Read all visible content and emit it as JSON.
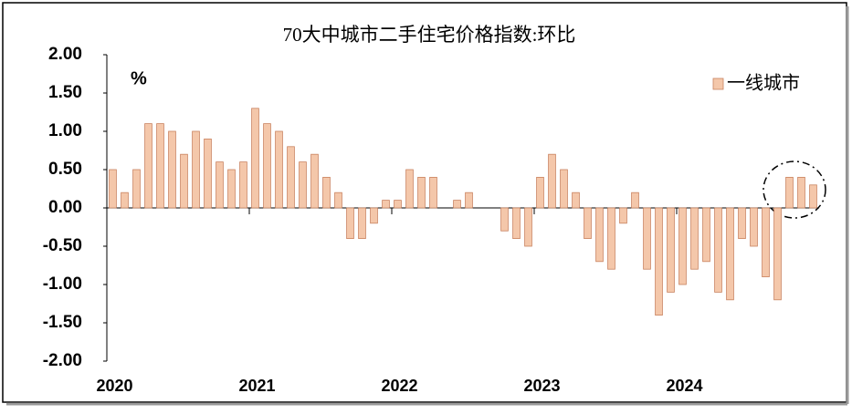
{
  "chart_data": {
    "type": "bar",
    "title": "70大中城市二手住宅价格指数:环比",
    "y_unit": "%",
    "categories": [
      "2020",
      null,
      null,
      null,
      null,
      null,
      null,
      null,
      null,
      null,
      null,
      null,
      "2021",
      null,
      null,
      null,
      null,
      null,
      null,
      null,
      null,
      null,
      null,
      null,
      "2022",
      null,
      null,
      null,
      null,
      null,
      null,
      null,
      null,
      null,
      null,
      null,
      "2023",
      null,
      null,
      null,
      null,
      null,
      null,
      null,
      null,
      null,
      null,
      null,
      "2024",
      null,
      null,
      null,
      null,
      null,
      null,
      null,
      null,
      null,
      null,
      null
    ],
    "series": [
      {
        "name": "一线城市",
        "color": "#f4c7aa",
        "values": [
          0.5,
          0.2,
          0.5,
          1.1,
          1.1,
          1.0,
          0.7,
          1.0,
          0.9,
          0.6,
          0.5,
          0.6,
          1.3,
          1.1,
          1.0,
          0.8,
          0.6,
          0.7,
          0.4,
          0.2,
          -0.4,
          -0.4,
          -0.2,
          0.1,
          0.1,
          0.5,
          0.4,
          0.4,
          0,
          0.1,
          0.2,
          0,
          0,
          -0.3,
          -0.4,
          -0.5,
          0.4,
          0.7,
          0.5,
          0.2,
          -0.4,
          -0.7,
          -0.8,
          -0.2,
          0.2,
          -0.8,
          -1.4,
          -1.1,
          -1.0,
          -0.8,
          -0.7,
          -1.1,
          -1.2,
          -0.4,
          -0.5,
          -0.9,
          -1.2,
          0.4,
          0.4,
          0.3
        ]
      }
    ],
    "ylim": [
      -2,
      2
    ],
    "yticks": [
      {
        "value": -2,
        "label": "-2.00"
      },
      {
        "value": -1.5,
        "label": "-1.50"
      },
      {
        "value": -1,
        "label": "-1.00"
      },
      {
        "value": -0.5,
        "label": "-0.50"
      },
      {
        "value": 0,
        "label": "0.00"
      },
      {
        "value": 0.5,
        "label": "0.50"
      },
      {
        "value": 1,
        "label": "1.00"
      },
      {
        "value": 1.5,
        "label": "1.50"
      },
      {
        "value": 2,
        "label": "2.00"
      }
    ],
    "legend": "top-right"
  }
}
